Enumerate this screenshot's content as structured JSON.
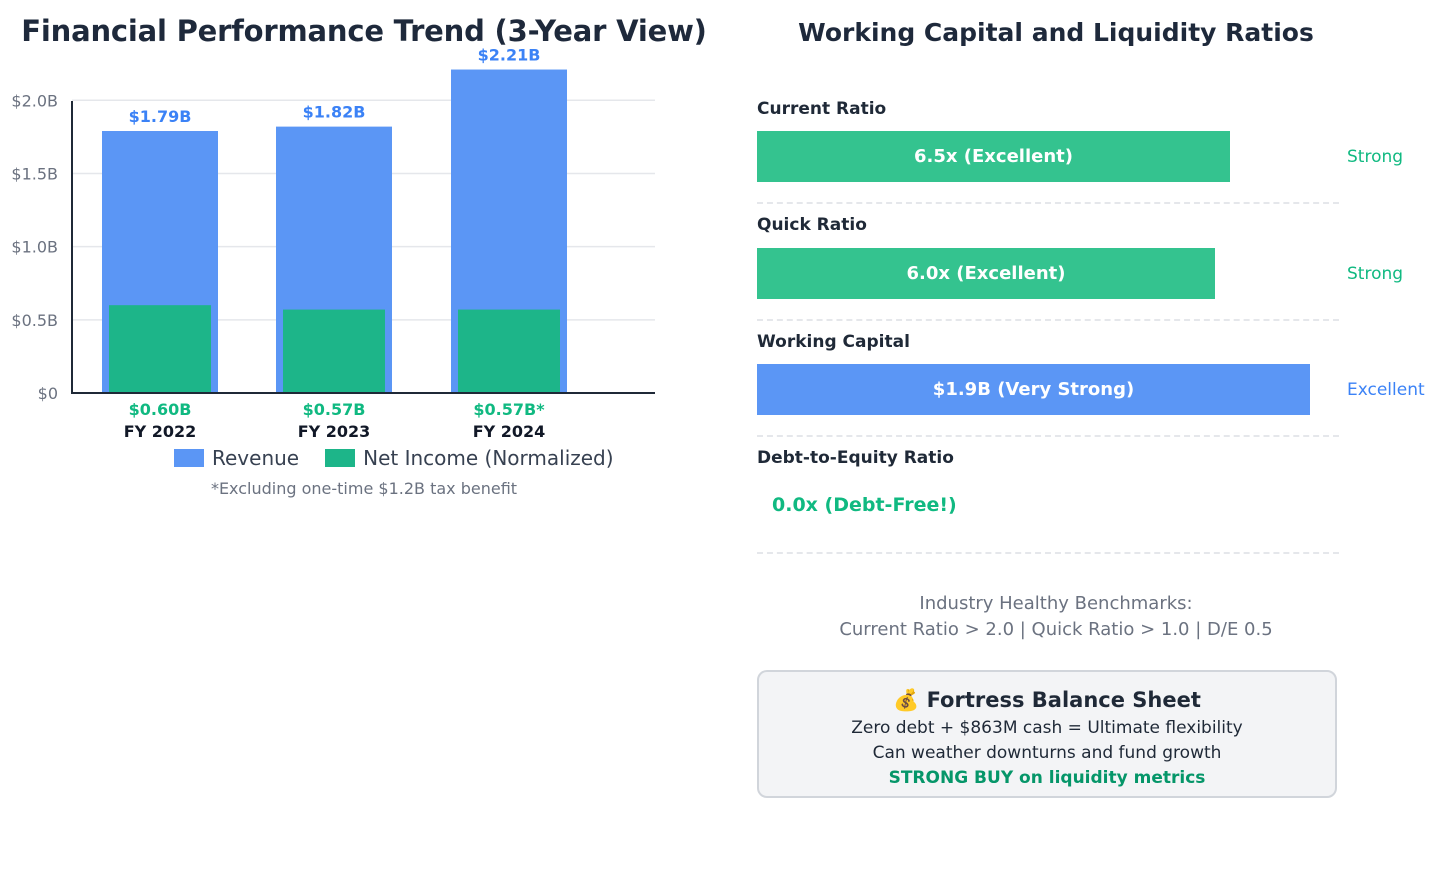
{
  "left": {
    "title": "Financial Performance Trend (3-Year View)",
    "footnote": "*Excluding one-time $1.2B tax benefit"
  },
  "chart_data": {
    "type": "bar",
    "title": "Financial Performance Trend (3-Year View)",
    "categories": [
      "FY 2022",
      "FY 2023",
      "FY 2024"
    ],
    "series": [
      {
        "name": "Revenue",
        "values": [
          1.79,
          1.82,
          2.21
        ],
        "labels": [
          "$1.79B",
          "$1.82B",
          "$2.21B"
        ],
        "color": "#5b96f5"
      },
      {
        "name": "Net Income (Normalized)",
        "values": [
          0.6,
          0.57,
          0.57
        ],
        "labels": [
          "$0.60B",
          "$0.57B",
          "$0.57B*"
        ],
        "color": "#1db589"
      }
    ],
    "yticks": [
      "$0",
      "$0.5B",
      "$1.0B",
      "$1.5B",
      "$2.0B"
    ],
    "ylim": [
      0,
      2.2
    ],
    "grid": true,
    "legend_position": "bottom"
  },
  "right": {
    "title": "Working Capital and Liquidity Ratios",
    "ratios": [
      {
        "label": "Current Ratio",
        "bar_text": "6.5x (Excellent)",
        "status": "Strong",
        "fraction": 0.812,
        "color": "#34c38f",
        "status_color": "#10b981"
      },
      {
        "label": "Quick Ratio",
        "bar_text": "6.0x (Excellent)",
        "status": "Strong",
        "fraction": 0.787,
        "color": "#34c38f",
        "status_color": "#10b981"
      },
      {
        "label": "Working Capital",
        "bar_text": "$1.9B (Very Strong)",
        "status": "Excellent",
        "fraction": 0.95,
        "color": "#5b96f5",
        "status_color": "#3b82f6"
      }
    ],
    "debt": {
      "label": "Debt-to-Equity Ratio",
      "value": "0.0x (Debt-Free!)"
    },
    "benchmarks": {
      "line1": "Industry Healthy Benchmarks:",
      "line2": "Current Ratio > 2.0 | Quick Ratio > 1.0 | D/E 0.5"
    },
    "summary": {
      "icon": "money-bag-icon",
      "icon_glyph": "💰",
      "title": "Fortress Balance Sheet",
      "line1": "Zero debt + $863M cash = Ultimate flexibility",
      "line2": "Can weather downturns and fund growth",
      "verdict": "STRONG BUY on liquidity metrics"
    }
  }
}
